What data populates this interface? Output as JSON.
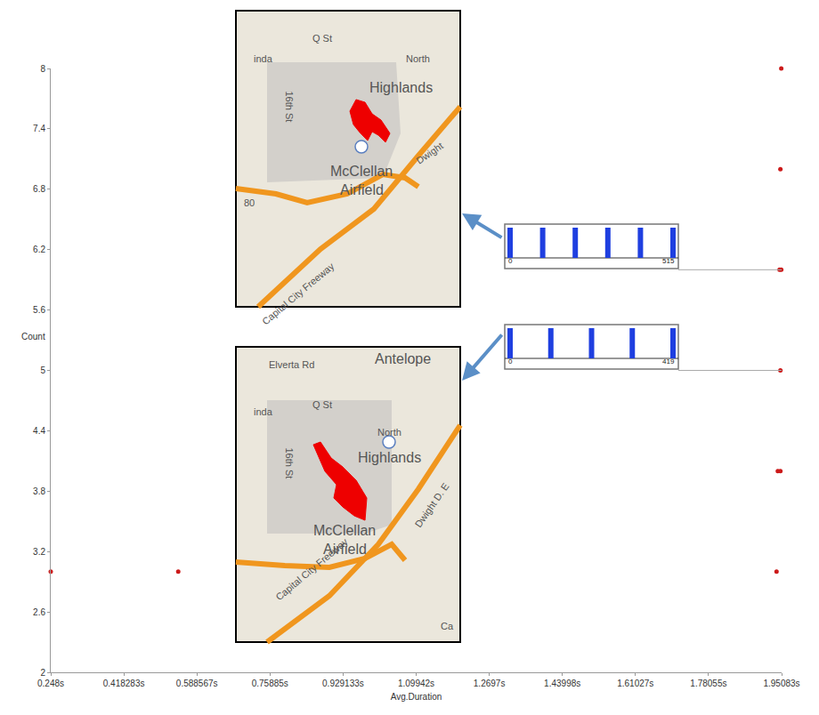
{
  "chart_data": {
    "type": "scatter",
    "x_label": "Avg.Duration",
    "y_label": "Count",
    "x": [
      0.248,
      0.545,
      1.939,
      1.942,
      1.948,
      1.948,
      1.946,
      1.95,
      1.948,
      1.95
    ],
    "values": [
      3,
      3,
      3,
      4,
      4,
      5,
      6,
      6,
      7,
      8
    ],
    "color": "#cc1a1a",
    "marker": "circle",
    "grid": false,
    "xlim": [
      0.248,
      1.95083
    ],
    "xticks": [
      {
        "value": 0.248,
        "label": "0.248s"
      },
      {
        "value": 0.418283,
        "label": "0.418283s"
      },
      {
        "value": 0.588567,
        "label": "0.588567s"
      },
      {
        "value": 0.75885,
        "label": "0.75885s"
      },
      {
        "value": 0.929133,
        "label": "0.929133s"
      },
      {
        "value": 1.09942,
        "label": "1.09942s"
      },
      {
        "value": 1.2697,
        "label": "1.2697s"
      },
      {
        "value": 1.43998,
        "label": "1.43998s"
      },
      {
        "value": 1.61027,
        "label": "1.61027s"
      },
      {
        "value": 1.78055,
        "label": "1.78055s"
      },
      {
        "value": 1.95083,
        "label": "1.95083s"
      }
    ],
    "ylim": [
      2,
      8
    ],
    "yticks": [
      2,
      2.6,
      3.2,
      3.8,
      4.4,
      5,
      5.6,
      6.2,
      6.8,
      7.4,
      8
    ],
    "insets": [
      {
        "map_labels": [
          "Q St",
          "inda",
          "North",
          "Highlands",
          "16th St",
          "McClellan",
          "Airfield",
          "Dwight",
          "Capital City Freeway",
          "80"
        ],
        "histogram": {
          "min": 0,
          "max": 515,
          "bars": 6
        },
        "link_y": 6
      },
      {
        "map_labels": [
          "Elverta Rd",
          "Antelope",
          "Q St",
          "inda",
          "North",
          "Highlands",
          "16th St",
          "McClellan",
          "Airfield",
          "Dwight D. E",
          "Capital City Freeway",
          "Ca"
        ],
        "histogram": {
          "min": 0,
          "max": 419,
          "bars": 5
        },
        "link_y": 5
      }
    ]
  }
}
